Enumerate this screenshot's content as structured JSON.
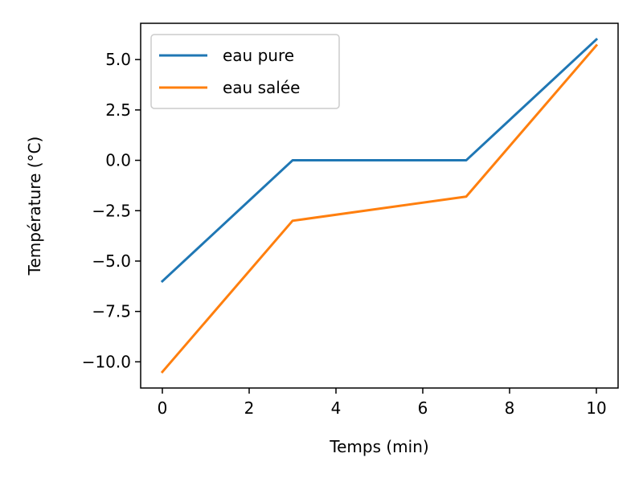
{
  "chart_data": {
    "type": "line",
    "x_ticks": [
      "0",
      "2",
      "4",
      "6",
      "8",
      "10"
    ],
    "y_ticks": [
      "−10.0",
      "−7.5",
      "−5.0",
      "−2.5",
      "0.0",
      "2.5",
      "5.0"
    ],
    "x_tick_values": [
      0,
      2,
      4,
      6,
      8,
      10
    ],
    "y_tick_values": [
      -10.0,
      -7.5,
      -5.0,
      -2.5,
      0.0,
      2.5,
      5.0
    ],
    "xlabel": "Temps (min)",
    "ylabel": "Température (°C)",
    "xlim": [
      -0.5,
      10.5
    ],
    "ylim": [
      -11.3,
      6.8
    ],
    "grid": false,
    "legend_position": "top-left",
    "series": [
      {
        "name": "eau pure",
        "color": "#1f77b4",
        "x": [
          0,
          3,
          7,
          10
        ],
        "y": [
          -6.0,
          0.0,
          0.0,
          6.0
        ]
      },
      {
        "name": "eau salée",
        "color": "#ff7f0e",
        "x": [
          0,
          3,
          7,
          10
        ],
        "y": [
          -10.5,
          -3.0,
          -1.8,
          5.7
        ]
      }
    ]
  }
}
